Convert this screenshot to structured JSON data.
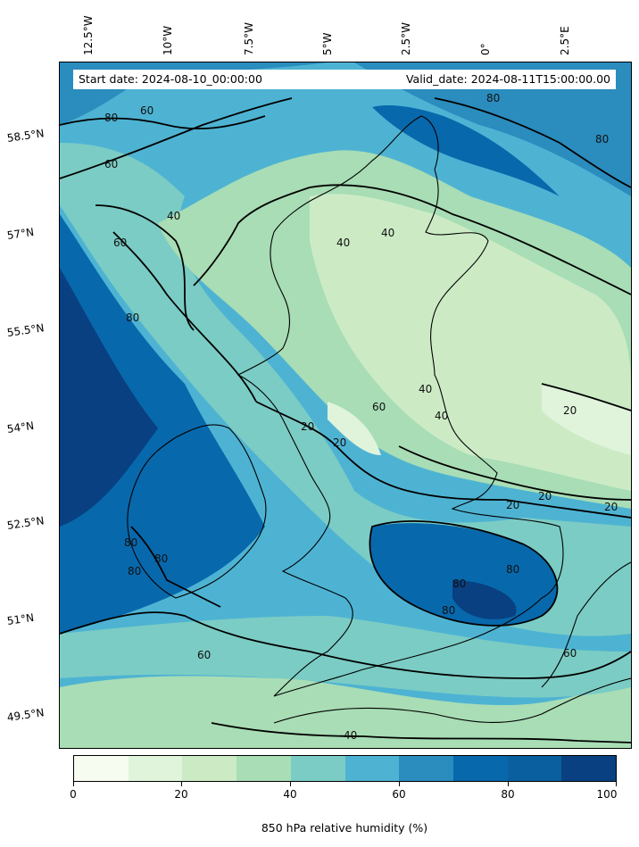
{
  "header": {
    "start_date": "Start date: 2024-08-10_00:00:00",
    "valid_date": "Valid_date: 2024-08-11T15:00:00.00"
  },
  "longitude_labels": [
    "12.5°W",
    "10°W",
    "7.5°W",
    "5°W",
    "2.5°W",
    "0°",
    "2.5°E"
  ],
  "latitude_labels": [
    "58.5°N",
    "57°N",
    "55.5°N",
    "54°N",
    "52.5°N",
    "51°N",
    "49.5°N"
  ],
  "colorbar": {
    "label": "850 hPa relative humidity (%)",
    "ticks": [
      "0",
      "20",
      "40",
      "60",
      "80",
      "100"
    ],
    "colors": [
      "#f7fcf0",
      "#e0f3db",
      "#ccebc5",
      "#a8ddb5",
      "#7bccc4",
      "#4eb3d3",
      "#2b8cbe",
      "#0868ac",
      "#0a5f9e",
      "#084081"
    ]
  },
  "contour_labels": [
    "80",
    "60",
    "60",
    "40",
    "60",
    "80",
    "80",
    "80",
    "40",
    "40",
    "40",
    "60",
    "40",
    "20",
    "20",
    "20",
    "20",
    "20",
    "20",
    "80",
    "80",
    "80",
    "80",
    "80",
    "80",
    "60",
    "60",
    "40"
  ],
  "map_description_colors": {
    "land_fill": "#a8ddb5",
    "sea_fill": "#4eb3d3",
    "dry_fill": "#e0f3db",
    "moist_fill": "#0868ac"
  }
}
